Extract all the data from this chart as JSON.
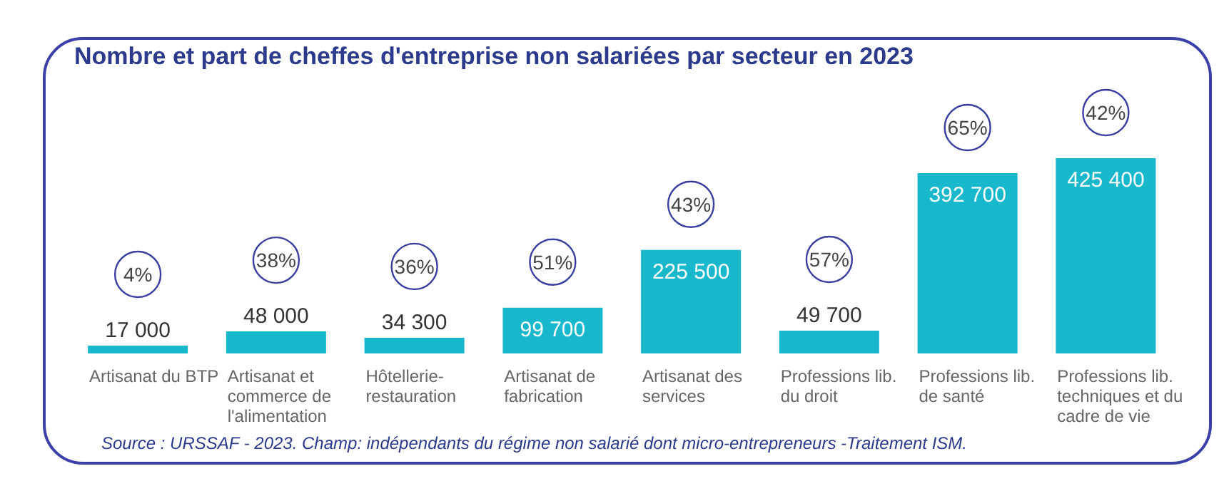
{
  "chart_data": {
    "type": "bar",
    "title": "Nombre et part de cheffes d'entreprise non salariées par secteur en 2023",
    "categories": [
      "Artisanat du BTP",
      "Artisanat et commerce de l'alimentation",
      "Hôtellerie-restauration",
      "Artisanat de fabrication",
      "Artisanat des services",
      "Professions lib. du droit",
      "Professions lib. de santé",
      "Professions lib. techniques et du cadre de vie"
    ],
    "values": [
      17000,
      48000,
      34300,
      99700,
      225500,
      49700,
      392700,
      425400
    ],
    "value_labels": [
      "17 000",
      "48 000",
      "34 300",
      "99 700",
      "225 500",
      "49 700",
      "392 700",
      "425 400"
    ],
    "color": "#17b8cc",
    "annotations": [
      "4%",
      "38%",
      "36%",
      "51%",
      "43%",
      "57%",
      "65%",
      "42%",
      "Source : URSSAF - 2023. Champ: indépendants du régime non salarié  dont micro-entrepreneurs -Traitement ISM."
    ]
  }
}
